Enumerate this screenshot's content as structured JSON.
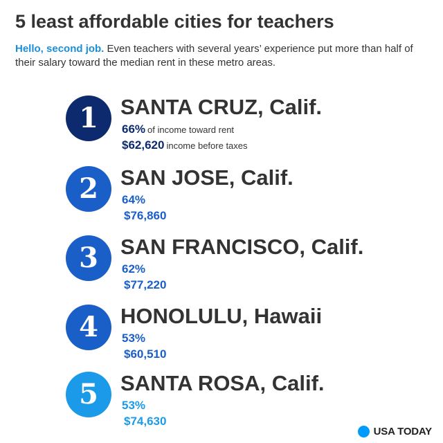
{
  "header": {
    "title": "5 least affordable cities for teachers",
    "subtitle_lead": "Hello, second job.",
    "subtitle_text": " Even teachers with several years’ experience put more than half of their salary toward the median rent in these metro areas."
  },
  "colors": {
    "rank_1": "#0d2a6e",
    "rank_2": "#1a5ec8",
    "rank_3": "#1a5ec8",
    "rank_4": "#1a5ec8",
    "rank_5": "#1a9ae8",
    "accent_blue": "#1a8fd8",
    "brand_dot": "#009bff"
  },
  "chart_data": {
    "type": "table",
    "title": "5 least affordable cities for teachers",
    "columns": [
      "rank",
      "city",
      "percent_of_income_toward_rent",
      "income_before_taxes"
    ],
    "value_notes": {
      "percent": "of income toward rent",
      "income": "income before taxes"
    },
    "rows": [
      {
        "rank": "1",
        "city": "SANTA CRUZ, Calif.",
        "percent": "66%",
        "income": "$62,620"
      },
      {
        "rank": "2",
        "city": "SAN JOSE, Calif.",
        "percent": "64%",
        "income": "$76,860"
      },
      {
        "rank": "3",
        "city": "SAN FRANCISCO, Calif.",
        "percent": "62%",
        "income": "$77,220"
      },
      {
        "rank": "4",
        "city": "HONOLULU, Hawaii",
        "percent": "53%",
        "income": "$60,510"
      },
      {
        "rank": "5",
        "city": "SANTA ROSA, Calif.",
        "percent": "53%",
        "income": "$74,630"
      }
    ]
  },
  "footer": {
    "brand": "USA TODAY"
  }
}
